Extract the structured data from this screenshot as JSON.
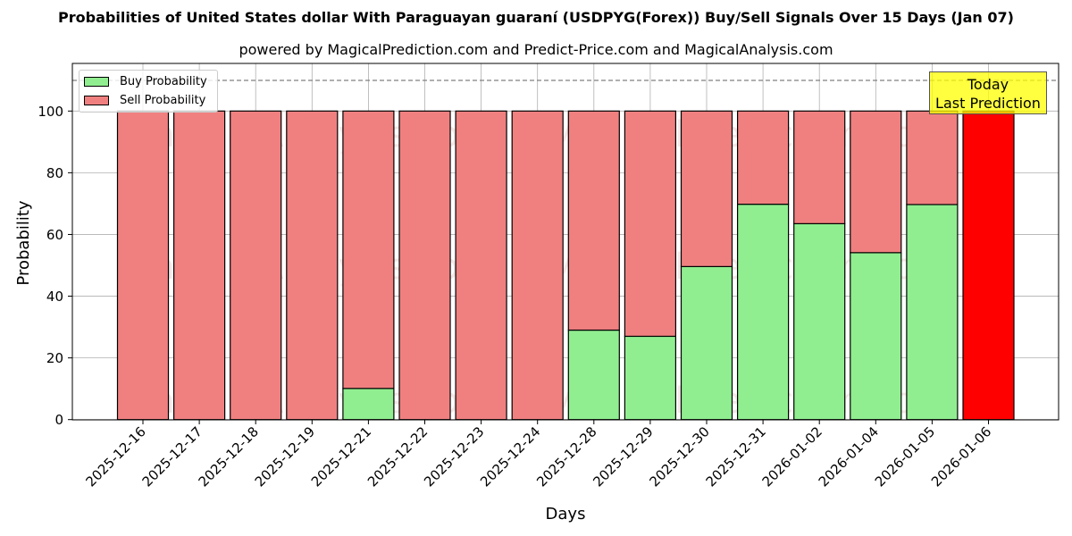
{
  "header": {
    "title": "Probabilities of United States dollar With Paraguayan guaraní (USDPYG(Forex)) Buy/Sell Signals Over 15 Days (Jan 07)",
    "subtitle": "powered by MagicalPrediction.com and Predict-Price.com and MagicalAnalysis.com"
  },
  "legend": {
    "buy_label": "Buy Probability",
    "sell_label": "Sell Probability"
  },
  "annotation": {
    "line1": "Today",
    "line2": "Last Prediction"
  },
  "axes": {
    "xlabel": "Days",
    "ylabel": "Probability",
    "yticks": [
      "0",
      "20",
      "40",
      "60",
      "80",
      "100"
    ]
  },
  "watermarks": [
    "MagicalAnalysis.com",
    "MagicalPrediction.com"
  ],
  "colors": {
    "buy": "#90ee90",
    "sell": "#f08080",
    "today": "#ff0000",
    "annotation_bg": "#ffff00",
    "reference_line": "#808080"
  },
  "chart_data": {
    "type": "bar",
    "stacked": true,
    "title": "Probabilities of United States dollar With Paraguayan guaraní (USDPYG(Forex)) Buy/Sell Signals Over 15 Days (Jan 07)",
    "subtitle": "powered by MagicalPrediction.com and Predict-Price.com and MagicalAnalysis.com",
    "xlabel": "Days",
    "ylabel": "Probability",
    "ylim": [
      0,
      115
    ],
    "yticks": [
      0,
      20,
      40,
      60,
      80,
      100
    ],
    "grid": true,
    "legend_position": "upper left",
    "reference_line": {
      "y": 110,
      "style": "dashed"
    },
    "categories": [
      "2025-12-16",
      "2025-12-17",
      "2025-12-18",
      "2025-12-19",
      "2025-12-21",
      "2025-12-22",
      "2025-12-23",
      "2025-12-24",
      "2025-12-28",
      "2025-12-29",
      "2025-12-30",
      "2025-12-31",
      "2026-01-02",
      "2026-01-04",
      "2026-01-05",
      "2026-01-06"
    ],
    "series": [
      {
        "name": "Buy Probability",
        "values": [
          0,
          0,
          0,
          0,
          10.1,
          0,
          0,
          0,
          29.0,
          27.0,
          49.6,
          69.8,
          63.5,
          54.1,
          69.7,
          0
        ]
      },
      {
        "name": "Sell Probability",
        "values": [
          100,
          100,
          100,
          100,
          89.9,
          100,
          100,
          100,
          71.0,
          73.0,
          50.4,
          30.2,
          36.5,
          45.9,
          30.3,
          100
        ]
      }
    ],
    "annotations": [
      {
        "text": "Today\nLast Prediction",
        "x": "2026-01-06"
      }
    ]
  }
}
